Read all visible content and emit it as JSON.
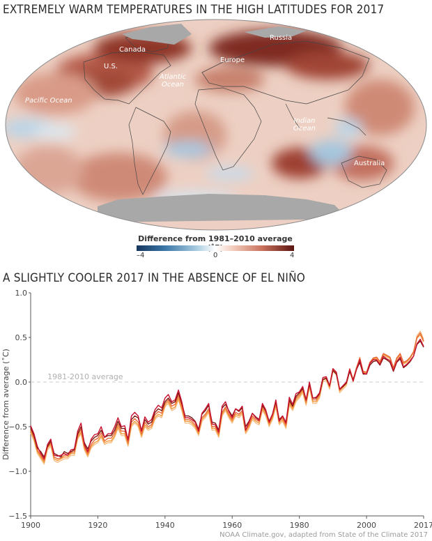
{
  "map": {
    "title": "EXTREMELY WARM TEMPERATURES IN THE HIGH LATITUDES FOR 2017",
    "labels": {
      "canada": "Canada",
      "us": "U.S.",
      "russia": "Russia",
      "europe": "Europe",
      "atlantic_1": "Atlantic",
      "atlantic_2": "Ocean",
      "pacific": "Pacific Ocean",
      "indian_1": "Indian",
      "indian_2": "Ocean",
      "australia": "Australia"
    },
    "legend": {
      "title": "Difference from 1981–2010 average (˚F)",
      "ticks": [
        "–4",
        "0",
        "4"
      ]
    }
  },
  "chart": {
    "title": "A SLIGHTLY COOLER 2017 IN THE ABSENCE OF EL NIÑO",
    "reference_label": "1981-2010 average"
  },
  "credit": "NOAA Climate.gov, adapted from State of the Climate 2017",
  "chart_data": {
    "type": "line",
    "title": "A SLIGHTLY COOLER 2017 IN THE ABSENCE OF EL NIÑO",
    "xlabel": "",
    "ylabel": "Difference from average (˚C)",
    "xlim": [
      1900,
      2017
    ],
    "ylim": [
      -1.5,
      1.0
    ],
    "x_ticks": [
      "1900",
      "1920",
      "1940",
      "1960",
      "1980",
      "2000",
      "2017"
    ],
    "y_ticks": [
      "1.0",
      "0.5",
      "0.0",
      "−0.5",
      "−1.0",
      "−1.5"
    ],
    "grid": false,
    "reference_line": {
      "y": 0.0,
      "label": "1981-2010 average"
    },
    "colors": [
      "#c8102e",
      "#7a1a12",
      "#f39a3a",
      "#e8683a",
      "#f5c08a"
    ],
    "x": [
      1900,
      1901,
      1902,
      1903,
      1904,
      1905,
      1906,
      1907,
      1908,
      1909,
      1910,
      1911,
      1912,
      1913,
      1914,
      1915,
      1916,
      1917,
      1918,
      1919,
      1920,
      1921,
      1922,
      1923,
      1924,
      1925,
      1926,
      1927,
      1928,
      1929,
      1930,
      1931,
      1932,
      1933,
      1934,
      1935,
      1936,
      1937,
      1938,
      1939,
      1940,
      1941,
      1942,
      1943,
      1944,
      1945,
      1946,
      1947,
      1948,
      1949,
      1950,
      1951,
      1952,
      1953,
      1954,
      1955,
      1956,
      1957,
      1958,
      1959,
      1960,
      1961,
      1962,
      1963,
      1964,
      1965,
      1966,
      1967,
      1968,
      1969,
      1970,
      1971,
      1972,
      1973,
      1974,
      1975,
      1976,
      1977,
      1978,
      1979,
      1980,
      1981,
      1982,
      1983,
      1984,
      1985,
      1986,
      1987,
      1988,
      1989,
      1990,
      1991,
      1992,
      1993,
      1994,
      1995,
      1996,
      1997,
      1998,
      1999,
      2000,
      2001,
      2002,
      2003,
      2004,
      2005,
      2006,
      2007,
      2008,
      2009,
      2010,
      2011,
      2012,
      2013,
      2014,
      2015,
      2016,
      2017
    ],
    "series": [
      {
        "values": [
          -0.49,
          -0.58,
          -0.72,
          -0.8,
          -0.86,
          -0.7,
          -0.64,
          -0.82,
          -0.83,
          -0.82,
          -0.8,
          -0.82,
          -0.76,
          -0.75,
          -0.55,
          -0.46,
          -0.7,
          -0.78,
          -0.64,
          -0.59,
          -0.58,
          -0.5,
          -0.62,
          -0.58,
          -0.58,
          -0.5,
          -0.4,
          -0.5,
          -0.49,
          -0.65,
          -0.38,
          -0.34,
          -0.38,
          -0.55,
          -0.39,
          -0.45,
          -0.42,
          -0.31,
          -0.26,
          -0.29,
          -0.18,
          -0.14,
          -0.22,
          -0.2,
          -0.09,
          -0.22,
          -0.4,
          -0.4,
          -0.42,
          -0.45,
          -0.55,
          -0.35,
          -0.3,
          -0.24,
          -0.47,
          -0.48,
          -0.56,
          -0.27,
          -0.22,
          -0.33,
          -0.4,
          -0.3,
          -0.32,
          -0.27,
          -0.54,
          -0.45,
          -0.35,
          -0.4,
          -0.43,
          -0.24,
          -0.31,
          -0.45,
          -0.36,
          -0.2,
          -0.44,
          -0.38,
          -0.46,
          -0.17,
          -0.25,
          -0.13,
          -0.11,
          -0.05,
          -0.2,
          0.0,
          -0.18,
          -0.17,
          -0.12,
          0.05,
          0.06,
          -0.04,
          0.15,
          0.11,
          -0.08,
          -0.04,
          0.0,
          0.14,
          0.01,
          0.14,
          0.25,
          0.1,
          0.09,
          0.21,
          0.25,
          0.25,
          0.2,
          0.29,
          0.26,
          0.24,
          0.13,
          0.23,
          0.28,
          0.17,
          0.2,
          0.24,
          0.29,
          0.43,
          0.48,
          0.4
        ]
      },
      {
        "values": [
          -0.51,
          -0.6,
          -0.74,
          -0.78,
          -0.84,
          -0.72,
          -0.66,
          -0.8,
          -0.82,
          -0.84,
          -0.78,
          -0.8,
          -0.78,
          -0.76,
          -0.58,
          -0.5,
          -0.68,
          -0.75,
          -0.66,
          -0.62,
          -0.6,
          -0.54,
          -0.62,
          -0.6,
          -0.6,
          -0.54,
          -0.44,
          -0.52,
          -0.52,
          -0.64,
          -0.42,
          -0.38,
          -0.4,
          -0.54,
          -0.42,
          -0.47,
          -0.45,
          -0.34,
          -0.3,
          -0.32,
          -0.22,
          -0.18,
          -0.24,
          -0.22,
          -0.12,
          -0.24,
          -0.38,
          -0.38,
          -0.4,
          -0.44,
          -0.53,
          -0.36,
          -0.32,
          -0.26,
          -0.45,
          -0.46,
          -0.54,
          -0.29,
          -0.25,
          -0.32,
          -0.38,
          -0.3,
          -0.33,
          -0.29,
          -0.5,
          -0.44,
          -0.35,
          -0.39,
          -0.42,
          -0.26,
          -0.32,
          -0.44,
          -0.36,
          -0.22,
          -0.42,
          -0.38,
          -0.45,
          -0.2,
          -0.27,
          -0.16,
          -0.12,
          -0.07,
          -0.2,
          -0.02,
          -0.18,
          -0.18,
          -0.13,
          0.03,
          0.04,
          -0.04,
          0.13,
          0.09,
          -0.08,
          -0.05,
          -0.01,
          0.12,
          0.02,
          0.14,
          0.22,
          0.09,
          0.09,
          0.19,
          0.23,
          0.24,
          0.19,
          0.27,
          0.25,
          0.22,
          0.12,
          0.22,
          0.26,
          0.16,
          0.19,
          0.23,
          0.29,
          0.42,
          0.46,
          0.39
        ]
      },
      {
        "values": [
          -0.55,
          -0.64,
          -0.78,
          -0.84,
          -0.9,
          -0.74,
          -0.7,
          -0.86,
          -0.88,
          -0.86,
          -0.84,
          -0.84,
          -0.8,
          -0.8,
          -0.62,
          -0.56,
          -0.74,
          -0.82,
          -0.72,
          -0.68,
          -0.66,
          -0.6,
          -0.68,
          -0.66,
          -0.66,
          -0.6,
          -0.5,
          -0.58,
          -0.58,
          -0.7,
          -0.48,
          -0.44,
          -0.48,
          -0.6,
          -0.48,
          -0.52,
          -0.5,
          -0.4,
          -0.36,
          -0.38,
          -0.26,
          -0.22,
          -0.3,
          -0.28,
          -0.18,
          -0.3,
          -0.44,
          -0.44,
          -0.46,
          -0.5,
          -0.58,
          -0.42,
          -0.38,
          -0.32,
          -0.52,
          -0.52,
          -0.6,
          -0.36,
          -0.3,
          -0.38,
          -0.44,
          -0.36,
          -0.38,
          -0.34,
          -0.56,
          -0.5,
          -0.4,
          -0.44,
          -0.46,
          -0.3,
          -0.36,
          -0.48,
          -0.4,
          -0.26,
          -0.46,
          -0.42,
          -0.5,
          -0.24,
          -0.3,
          -0.2,
          -0.16,
          -0.1,
          -0.24,
          -0.04,
          -0.22,
          -0.22,
          -0.16,
          0.02,
          0.04,
          -0.06,
          0.14,
          0.1,
          -0.1,
          -0.06,
          -0.02,
          0.14,
          0.02,
          0.16,
          0.26,
          0.11,
          0.11,
          0.22,
          0.26,
          0.27,
          0.22,
          0.31,
          0.29,
          0.27,
          0.15,
          0.26,
          0.31,
          0.21,
          0.23,
          0.27,
          0.33,
          0.49,
          0.53,
          0.45
        ]
      },
      {
        "values": [
          -0.53,
          -0.62,
          -0.76,
          -0.82,
          -0.88,
          -0.73,
          -0.68,
          -0.84,
          -0.86,
          -0.85,
          -0.82,
          -0.82,
          -0.79,
          -0.78,
          -0.6,
          -0.53,
          -0.72,
          -0.8,
          -0.7,
          -0.65,
          -0.63,
          -0.57,
          -0.66,
          -0.63,
          -0.63,
          -0.57,
          -0.47,
          -0.55,
          -0.55,
          -0.68,
          -0.45,
          -0.41,
          -0.45,
          -0.58,
          -0.45,
          -0.5,
          -0.48,
          -0.37,
          -0.33,
          -0.35,
          -0.24,
          -0.2,
          -0.27,
          -0.25,
          -0.15,
          -0.27,
          -0.42,
          -0.42,
          -0.44,
          -0.48,
          -0.56,
          -0.4,
          -0.36,
          -0.3,
          -0.5,
          -0.5,
          -0.58,
          -0.34,
          -0.28,
          -0.36,
          -0.42,
          -0.34,
          -0.36,
          -0.32,
          -0.54,
          -0.48,
          -0.38,
          -0.42,
          -0.44,
          -0.28,
          -0.34,
          -0.46,
          -0.38,
          -0.24,
          -0.44,
          -0.4,
          -0.48,
          -0.22,
          -0.28,
          -0.18,
          -0.14,
          -0.08,
          -0.22,
          -0.03,
          -0.2,
          -0.2,
          -0.14,
          0.03,
          0.05,
          -0.05,
          0.15,
          0.11,
          -0.09,
          -0.05,
          -0.01,
          0.15,
          0.03,
          0.16,
          0.27,
          0.12,
          0.11,
          0.22,
          0.27,
          0.28,
          0.23,
          0.32,
          0.3,
          0.28,
          0.16,
          0.27,
          0.32,
          0.22,
          0.24,
          0.28,
          0.34,
          0.5,
          0.55,
          0.46
        ]
      },
      {
        "values": [
          -0.57,
          -0.66,
          -0.8,
          -0.86,
          -0.92,
          -0.76,
          -0.72,
          -0.88,
          -0.9,
          -0.88,
          -0.86,
          -0.86,
          -0.82,
          -0.82,
          -0.64,
          -0.58,
          -0.76,
          -0.84,
          -0.74,
          -0.7,
          -0.68,
          -0.62,
          -0.7,
          -0.68,
          -0.68,
          -0.62,
          -0.52,
          -0.6,
          -0.6,
          -0.72,
          -0.5,
          -0.46,
          -0.5,
          -0.62,
          -0.5,
          -0.54,
          -0.52,
          -0.42,
          -0.38,
          -0.4,
          -0.28,
          -0.24,
          -0.32,
          -0.3,
          -0.2,
          -0.32,
          -0.46,
          -0.46,
          -0.48,
          -0.52,
          -0.6,
          -0.44,
          -0.4,
          -0.34,
          -0.54,
          -0.54,
          -0.62,
          -0.38,
          -0.32,
          -0.4,
          -0.46,
          -0.38,
          -0.4,
          -0.36,
          -0.58,
          -0.52,
          -0.42,
          -0.46,
          -0.48,
          -0.32,
          -0.38,
          -0.5,
          -0.42,
          -0.28,
          -0.48,
          -0.44,
          -0.52,
          -0.26,
          -0.32,
          -0.22,
          -0.18,
          -0.12,
          -0.26,
          -0.06,
          -0.24,
          -0.24,
          -0.18,
          0.0,
          0.02,
          -0.08,
          0.12,
          0.08,
          -0.12,
          -0.08,
          -0.04,
          0.12,
          0.0,
          0.14,
          0.28,
          0.1,
          0.1,
          0.21,
          0.25,
          0.26,
          0.21,
          0.3,
          0.28,
          0.26,
          0.14,
          0.25,
          0.3,
          0.2,
          0.22,
          0.26,
          0.33,
          0.52,
          0.57,
          0.48
        ]
      }
    ]
  }
}
